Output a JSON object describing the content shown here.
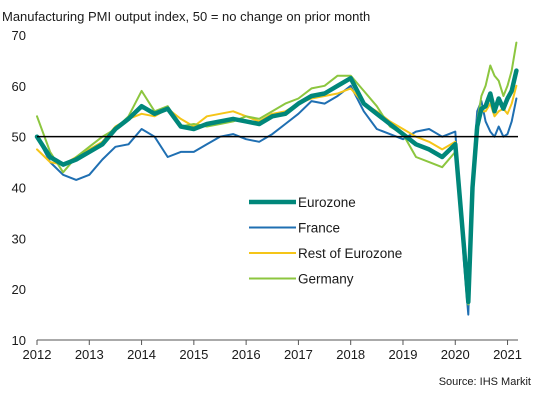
{
  "chart_data": {
    "type": "line",
    "title": "Manufacturing PMI output index, 50 = no change on prior month",
    "source": "Source: IHS Markit",
    "xlabel": "",
    "ylabel": "",
    "xlim": [
      2012.0,
      2021.2
    ],
    "ylim": [
      10,
      70
    ],
    "x_ticks": [
      "2012",
      "2013",
      "2014",
      "2015",
      "2016",
      "2017",
      "2018",
      "2019",
      "2020",
      "2021"
    ],
    "y_ticks": [
      "10",
      "20",
      "30",
      "40",
      "50",
      "60",
      "70"
    ],
    "reference_line": 50,
    "legend_position": "center",
    "x": [
      2012.0,
      2012.25,
      2012.5,
      2012.75,
      2013.0,
      2013.25,
      2013.5,
      2013.75,
      2014.0,
      2014.25,
      2014.5,
      2014.75,
      2015.0,
      2015.25,
      2015.5,
      2015.75,
      2016.0,
      2016.25,
      2016.5,
      2016.75,
      2017.0,
      2017.25,
      2017.5,
      2017.75,
      2018.0,
      2018.25,
      2018.5,
      2018.75,
      2019.0,
      2019.25,
      2019.5,
      2019.75,
      2020.0,
      2020.17,
      2020.25,
      2020.33,
      2020.42,
      2020.5,
      2020.58,
      2020.67,
      2020.75,
      2020.83,
      2020.92,
      2021.0,
      2021.08,
      2021.17
    ],
    "series": [
      {
        "name": "Eurozone",
        "color": "#00877a",
        "width": 4.5,
        "values": [
          50,
          46,
          44.5,
          45.5,
          47,
          48.5,
          51.5,
          53.5,
          56,
          54.5,
          55.5,
          52,
          51.5,
          52.5,
          53,
          53.5,
          53,
          52.5,
          54,
          54.5,
          56.5,
          58,
          58.5,
          60,
          61.5,
          56.5,
          54.5,
          52.5,
          50.5,
          48.5,
          47.5,
          46,
          48.5,
          28,
          17.5,
          40,
          52,
          55.5,
          56,
          58.5,
          55,
          57.5,
          55.5,
          57.5,
          59,
          63
        ]
      },
      {
        "name": "France",
        "color": "#1f6fb2",
        "width": 2,
        "values": [
          50,
          45,
          42.5,
          41.5,
          42.5,
          45.5,
          48,
          48.5,
          51.5,
          50,
          46,
          47,
          47,
          48.5,
          50,
          50.5,
          49.5,
          49,
          50.5,
          52.5,
          54.5,
          57,
          56.5,
          58,
          60,
          55,
          51.5,
          50.5,
          49.5,
          51,
          51.5,
          50,
          51,
          25,
          15,
          42,
          55,
          57,
          53,
          51,
          50,
          52,
          50,
          50.5,
          53,
          57.5
        ]
      },
      {
        "name": "Rest of Eurozone",
        "color": "#f5c518",
        "width": 2,
        "values": [
          47.5,
          45,
          44.5,
          46,
          47.5,
          49,
          52,
          53.5,
          54.5,
          54,
          55.5,
          53.5,
          52,
          54,
          54.5,
          55,
          54,
          53,
          54.5,
          55,
          56.5,
          57.5,
          58,
          58.5,
          59.5,
          56.5,
          55,
          53,
          51.5,
          50,
          49,
          47.5,
          49,
          30,
          18,
          41,
          52,
          55,
          55,
          56.5,
          54,
          55,
          55.5,
          54.5,
          56.5,
          60
        ]
      },
      {
        "name": "Germany",
        "color": "#8cc63f",
        "width": 2,
        "values": [
          54,
          47,
          43,
          46,
          48,
          50,
          51.5,
          54,
          59,
          55,
          56,
          52,
          52.5,
          52,
          52.5,
          53,
          54,
          53.5,
          55,
          56.5,
          57.5,
          59.5,
          60,
          62,
          62,
          59,
          56,
          52,
          50.5,
          46,
          45,
          44,
          47,
          30,
          17,
          38,
          53,
          58,
          60,
          64,
          62,
          61,
          58,
          60,
          63,
          68.5
        ]
      }
    ]
  }
}
